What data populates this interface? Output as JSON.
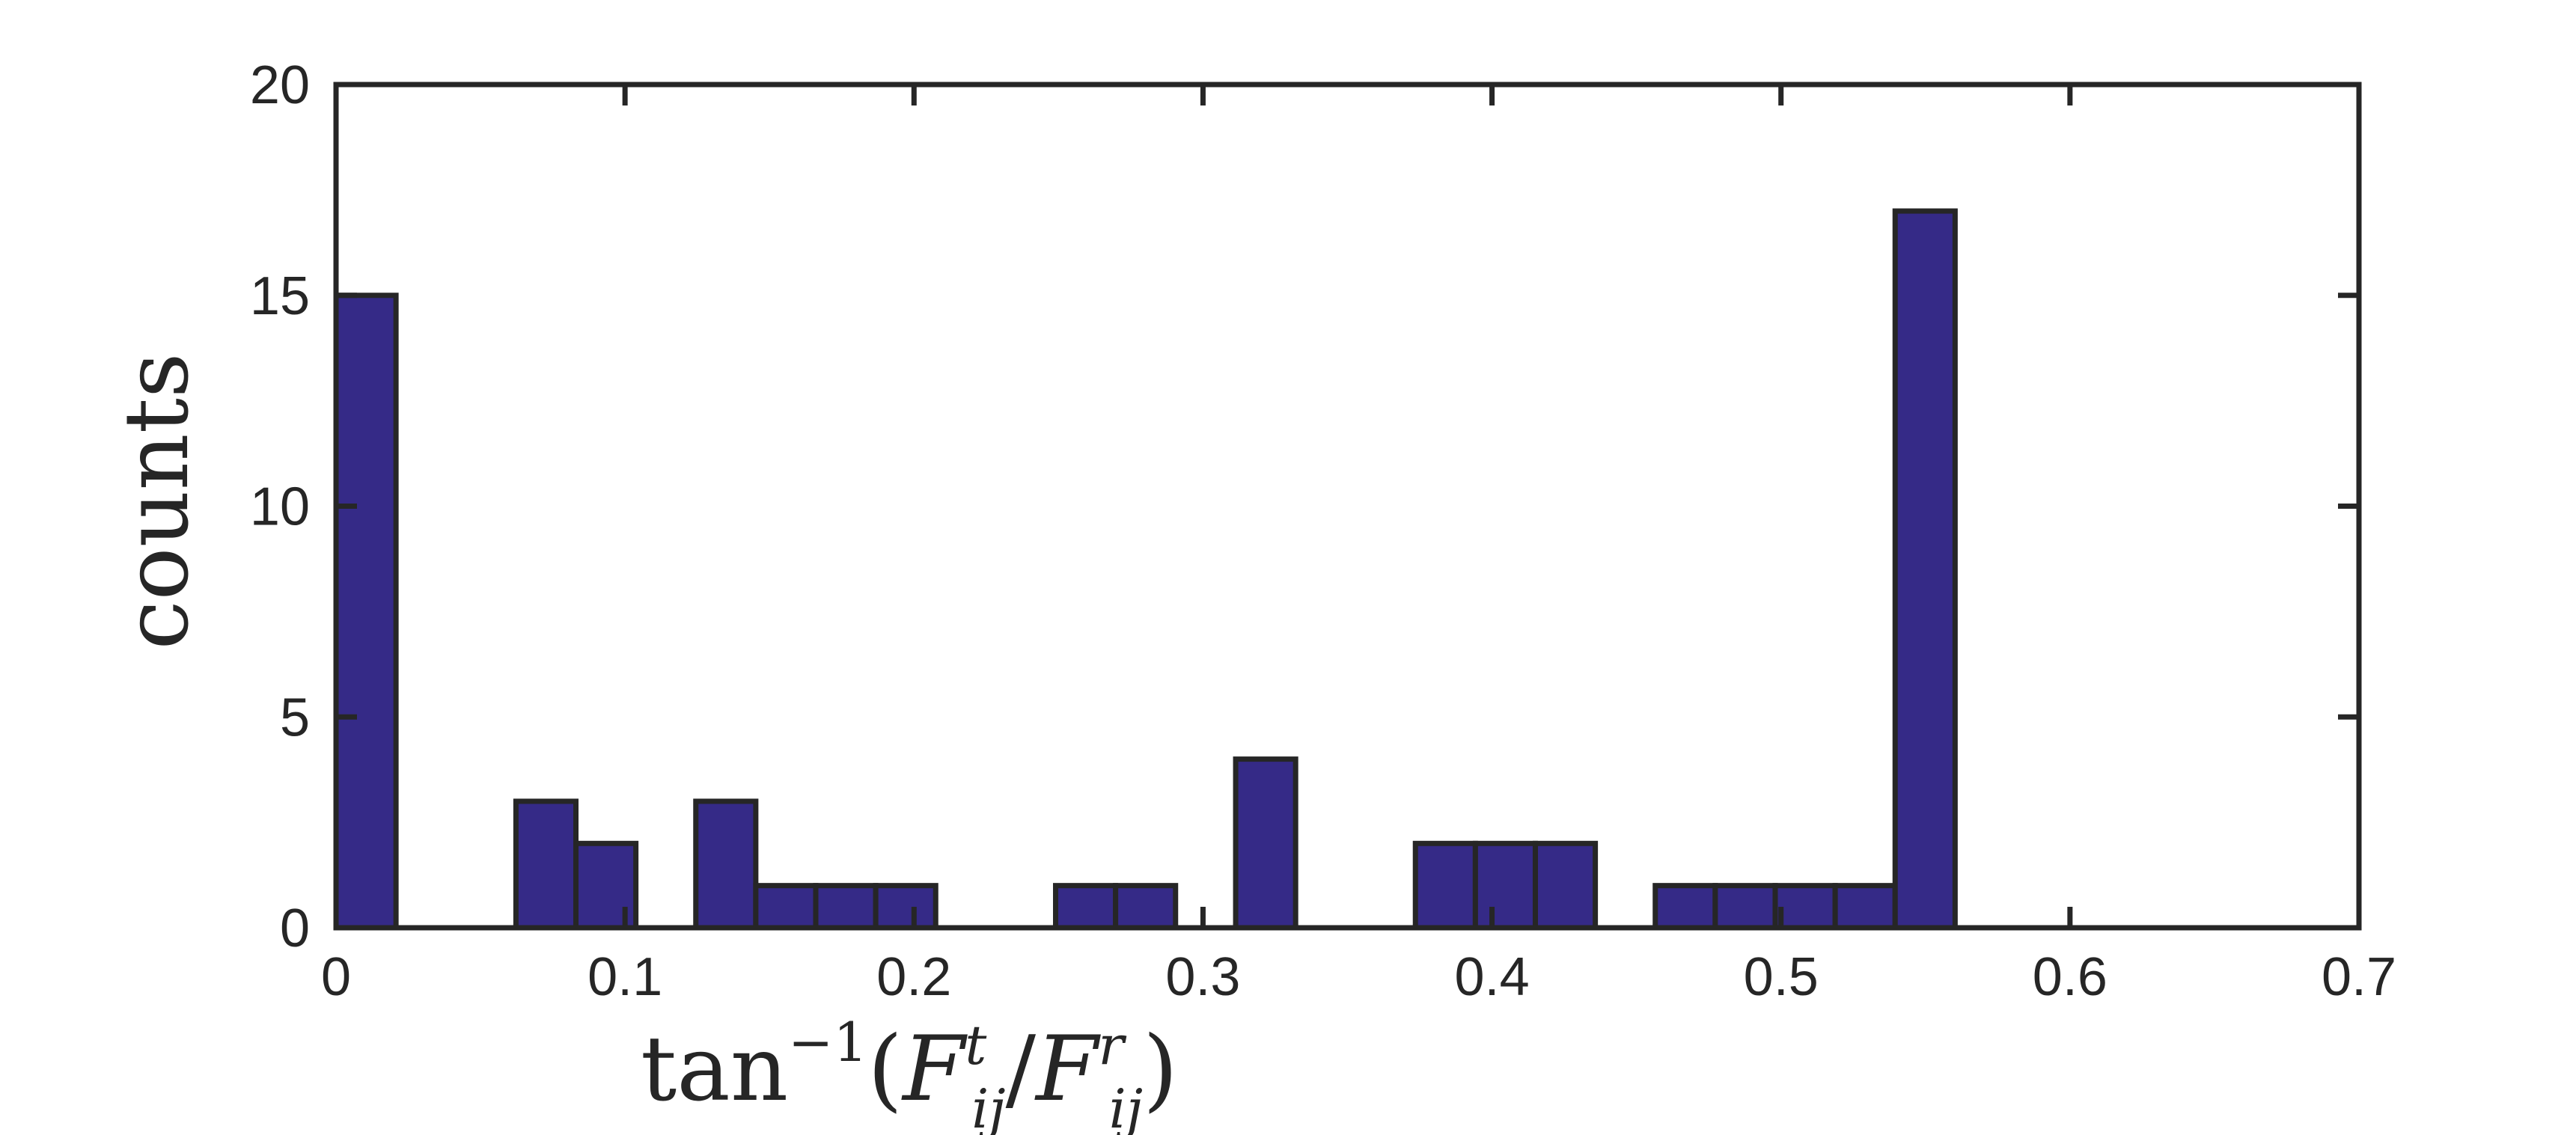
{
  "chart_data": {
    "type": "bar",
    "bar_color": "#352a87",
    "edge_color": "#262626",
    "bin_width": 0.02075,
    "bins": [
      {
        "x": 0.0,
        "count": 15
      },
      {
        "x": 0.06225,
        "count": 3
      },
      {
        "x": 0.083,
        "count": 2
      },
      {
        "x": 0.1245,
        "count": 3
      },
      {
        "x": 0.14525,
        "count": 1
      },
      {
        "x": 0.166,
        "count": 1
      },
      {
        "x": 0.18675,
        "count": 1
      },
      {
        "x": 0.249,
        "count": 1
      },
      {
        "x": 0.26975,
        "count": 1
      },
      {
        "x": 0.3113,
        "count": 4
      },
      {
        "x": 0.3735,
        "count": 2
      },
      {
        "x": 0.39425,
        "count": 2
      },
      {
        "x": 0.415,
        "count": 2
      },
      {
        "x": 0.4565,
        "count": 1
      },
      {
        "x": 0.47725,
        "count": 1
      },
      {
        "x": 0.498,
        "count": 1
      },
      {
        "x": 0.51875,
        "count": 1
      },
      {
        "x": 0.5395,
        "count": 17
      }
    ],
    "xlim": [
      0,
      0.7
    ],
    "ylim": [
      0,
      20
    ],
    "x_ticks": [
      0,
      0.1,
      0.2,
      0.3,
      0.4,
      0.5,
      0.6,
      0.7
    ],
    "x_tick_labels": [
      "0",
      "0.1",
      "0.2",
      "0.3",
      "0.4",
      "0.5",
      "0.6",
      "0.7"
    ],
    "y_ticks": [
      0,
      5,
      10,
      15,
      20
    ],
    "y_tick_labels": [
      "0",
      "5",
      "10",
      "15",
      "20"
    ],
    "ylabel": "counts",
    "xlabel": {
      "func": "tan",
      "func_sup": "−1",
      "num_base": "F",
      "num_sup": "t",
      "num_sub": "ij",
      "den_base": "F",
      "den_sup": "r",
      "den_sub": "ij"
    },
    "grid": false,
    "legend": false
  }
}
